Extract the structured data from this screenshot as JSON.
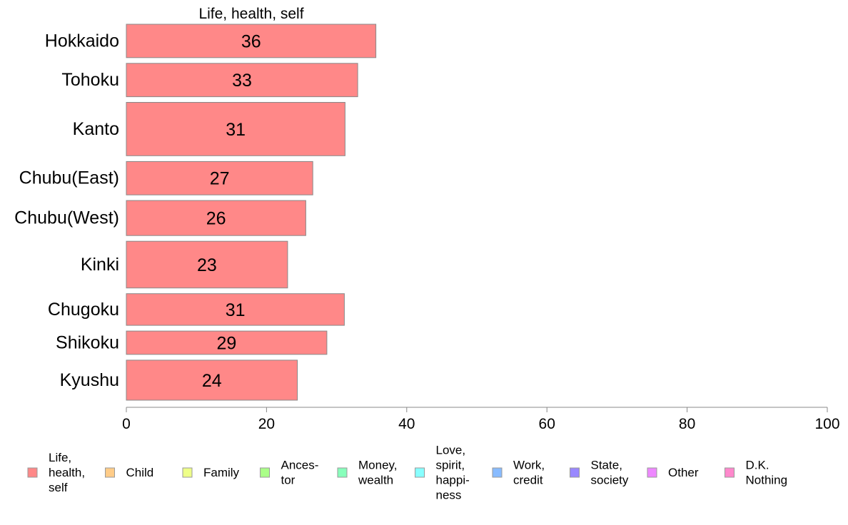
{
  "chart_data": {
    "type": "bar",
    "orientation": "horizontal",
    "title": "Life, health, self",
    "xlabel": "",
    "ylabel": "",
    "xlim": [
      0,
      100
    ],
    "xticks": [
      0,
      20,
      40,
      60,
      80,
      100
    ],
    "categories": [
      "Hokkaido",
      "Tohoku",
      "Kanto",
      "Chubu(East)",
      "Chubu(West)",
      "Kinki",
      "Chugoku",
      "Shikoku",
      "Kyushu"
    ],
    "series": [
      {
        "name": "Life, health, self",
        "color": "#ff8888",
        "values": [
          35.6,
          33.0,
          31.2,
          26.6,
          25.6,
          23.0,
          31.1,
          28.6,
          24.4
        ],
        "labels": [
          "36",
          "33",
          "31",
          "27",
          "26",
          "23",
          "31",
          "29",
          "24"
        ]
      }
    ],
    "relative_weights": [
      1.0,
      1.0,
      1.6,
      1.0,
      1.05,
      1.4,
      0.95,
      0.7,
      1.2
    ],
    "grid": false,
    "legend": {
      "placement": "bottom",
      "items": [
        {
          "label": [
            "Life,",
            "health,",
            "self"
          ],
          "color": "#ff8888"
        },
        {
          "label": [
            "Child"
          ],
          "color": "#ffcc88"
        },
        {
          "label": [
            "Family"
          ],
          "color": "#eeff88"
        },
        {
          "label": [
            "Ances-",
            "tor"
          ],
          "color": "#aaff88"
        },
        {
          "label": [
            "Money,",
            "wealth"
          ],
          "color": "#88ffbb"
        },
        {
          "label": [
            "Love,",
            "spirit,",
            "happi-",
            "ness"
          ],
          "color": "#88ffff"
        },
        {
          "label": [
            "Work,",
            "credit"
          ],
          "color": "#88bbff"
        },
        {
          "label": [
            "State,",
            "society"
          ],
          "color": "#9988ff"
        },
        {
          "label": [
            "Other"
          ],
          "color": "#ee88ff"
        },
        {
          "label": [
            "D.K.",
            "Nothing"
          ],
          "color": "#ff88cc"
        }
      ]
    }
  }
}
